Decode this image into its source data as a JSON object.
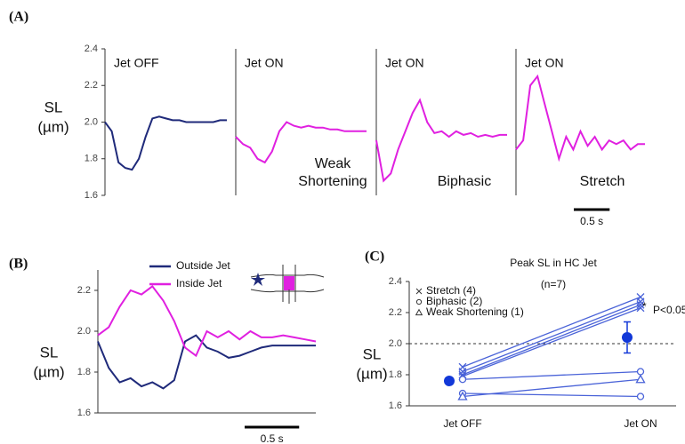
{
  "chart_data": [
    {
      "type": "line",
      "panel_label": "(A)",
      "ylabel": [
        "SL",
        "(µm)"
      ],
      "title": "Jet OFF",
      "color": "#1f2a7a",
      "x": [
        0,
        0.1,
        0.2,
        0.3,
        0.4,
        0.5,
        0.6,
        0.7,
        0.8,
        0.9,
        1.0,
        1.1,
        1.2,
        1.3,
        1.4,
        1.5,
        1.6,
        1.7,
        1.8
      ],
      "values": [
        2.0,
        1.95,
        1.78,
        1.75,
        1.74,
        1.8,
        1.92,
        2.02,
        2.03,
        2.02,
        2.01,
        2.01,
        2.0,
        2.0,
        2.0,
        2.0,
        2.0,
        2.01,
        2.01
      ],
      "xlim": [
        0,
        1.8
      ],
      "ylim": [
        1.6,
        2.4
      ],
      "yticks": [
        1.6,
        1.8,
        {
          "value": 2,
          "label": "2.0"
        },
        2.2,
        2.4
      ]
    },
    {
      "type": "line",
      "title": "Jet ON",
      "annotation": [
        "Weak",
        "Shortening"
      ],
      "color": "#e020e0",
      "x": [
        0,
        0.1,
        0.2,
        0.3,
        0.4,
        0.5,
        0.6,
        0.7,
        0.8,
        0.9,
        1.0,
        1.1,
        1.2,
        1.3,
        1.4,
        1.5,
        1.6,
        1.7,
        1.8
      ],
      "values": [
        1.92,
        1.88,
        1.86,
        1.8,
        1.78,
        1.84,
        1.95,
        2.0,
        1.98,
        1.97,
        1.98,
        1.97,
        1.97,
        1.96,
        1.96,
        1.95,
        1.95,
        1.95,
        1.95
      ],
      "xlim": [
        0,
        1.8
      ],
      "ylim": [
        1.6,
        2.4
      ]
    },
    {
      "type": "line",
      "title": "Jet ON",
      "annotation": [
        "Biphasic"
      ],
      "color": "#e020e0",
      "x": [
        0,
        0.1,
        0.2,
        0.3,
        0.4,
        0.5,
        0.6,
        0.7,
        0.8,
        0.9,
        1.0,
        1.1,
        1.2,
        1.3,
        1.4,
        1.5,
        1.6,
        1.7,
        1.8
      ],
      "values": [
        1.9,
        1.68,
        1.72,
        1.85,
        1.95,
        2.05,
        2.12,
        2.0,
        1.94,
        1.95,
        1.92,
        1.95,
        1.93,
        1.94,
        1.92,
        1.93,
        1.92,
        1.93,
        1.93
      ],
      "xlim": [
        0,
        1.8
      ],
      "ylim": [
        1.6,
        2.4
      ]
    },
    {
      "type": "line",
      "title": "Jet ON",
      "annotation": [
        "Stretch"
      ],
      "color": "#e020e0",
      "x": [
        0,
        0.1,
        0.2,
        0.3,
        0.4,
        0.5,
        0.6,
        0.7,
        0.8,
        0.9,
        1.0,
        1.1,
        1.2,
        1.3,
        1.4,
        1.5,
        1.6,
        1.7,
        1.8
      ],
      "values": [
        1.85,
        1.9,
        2.2,
        2.25,
        2.1,
        1.95,
        1.8,
        1.92,
        1.85,
        1.95,
        1.87,
        1.92,
        1.85,
        1.9,
        1.88,
        1.9,
        1.85,
        1.88,
        1.88
      ],
      "xlim": [
        0,
        1.8
      ],
      "ylim": [
        1.6,
        2.4
      ],
      "scalebar": {
        "value": 0.5,
        "label": "0.5 s"
      }
    },
    {
      "type": "line",
      "panel_label": "(B)",
      "ylabel": [
        "SL",
        "(µm)"
      ],
      "x": [
        0,
        0.1,
        0.2,
        0.3,
        0.4,
        0.5,
        0.6,
        0.7,
        0.8,
        0.9,
        1.0,
        1.1,
        1.2,
        1.3,
        1.4,
        1.5,
        1.6,
        1.7,
        1.8,
        1.9,
        2.0
      ],
      "series": [
        {
          "name": "Outside Jet",
          "color": "#1f2a7a",
          "values": [
            1.95,
            1.82,
            1.75,
            1.77,
            1.73,
            1.75,
            1.72,
            1.76,
            1.95,
            1.98,
            1.92,
            1.9,
            1.87,
            1.88,
            1.9,
            1.92,
            1.93,
            1.93,
            1.93,
            1.93,
            1.93
          ]
        },
        {
          "name": "Inside Jet",
          "color": "#e020e0",
          "values": [
            1.98,
            2.02,
            2.12,
            2.2,
            2.18,
            2.22,
            2.15,
            2.05,
            1.92,
            1.88,
            2.0,
            1.97,
            2.0,
            1.96,
            2.0,
            1.97,
            1.97,
            1.98,
            1.97,
            1.96,
            1.95
          ]
        }
      ],
      "xlim": [
        0,
        2.0
      ],
      "ylim": [
        1.6,
        2.3
      ],
      "yticks": [
        1.6,
        1.8,
        {
          "value": 2,
          "label": "2.0"
        },
        2.2
      ],
      "scalebar": {
        "value": 0.5,
        "label": "0.5 s"
      }
    },
    {
      "type": "paired",
      "panel_label": "(C)",
      "title": "Peak SL in HC Jet",
      "subtitle": "(n=7)",
      "ylabel": [
        "SL",
        "(µm)"
      ],
      "categories": [
        "Jet OFF",
        "Jet ON"
      ],
      "series": [
        {
          "name": "Stretch (4)",
          "marker": "x",
          "color": "#4a63d8",
          "values": [
            [
              1.85,
              2.3
            ],
            [
              1.82,
              2.27
            ],
            [
              1.8,
              2.25
            ],
            [
              1.79,
              2.23
            ]
          ]
        },
        {
          "name": "Biphasic (2)",
          "marker": "circle",
          "color": "#4a63d8",
          "values": [
            [
              1.77,
              1.82
            ],
            [
              1.68,
              1.66
            ]
          ]
        },
        {
          "name": "Weak Shortening (1)",
          "marker": "triangle",
          "color": "#4a63d8",
          "values": [
            [
              1.66,
              1.77
            ]
          ]
        }
      ],
      "mean": {
        "color": "#1238d8",
        "values": [
          1.76,
          2.04
        ],
        "errors": [
          0.01,
          0.1
        ]
      },
      "hline": 2.0,
      "significance": "*",
      "p_label": "P<0.05",
      "ylim": [
        1.6,
        2.4
      ],
      "yticks": [
        1.6,
        1.8,
        {
          "value": 2,
          "label": "2.0"
        },
        2.2,
        2.4
      ]
    }
  ]
}
